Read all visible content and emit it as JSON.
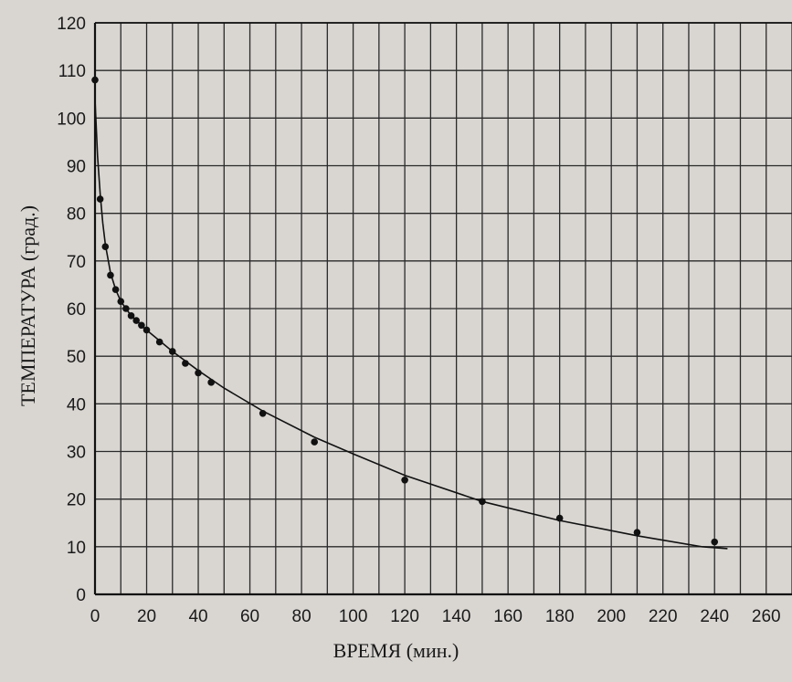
{
  "chart_data": {
    "type": "scatter",
    "xlabel": "ВРЕМЯ (мин.)",
    "ylabel": "ТЕМПЕРАТУРА (град.)",
    "xlim": [
      0,
      270
    ],
    "ylim": [
      0,
      120
    ],
    "x_ticks": [
      0,
      20,
      40,
      60,
      80,
      100,
      120,
      140,
      160,
      180,
      200,
      220,
      240,
      260
    ],
    "y_ticks": [
      0,
      10,
      20,
      30,
      40,
      50,
      60,
      70,
      80,
      90,
      100,
      110,
      120
    ],
    "x_grid_step": 10,
    "y_grid_step": 10,
    "grid": true,
    "points": [
      {
        "x": 0,
        "y": 108
      },
      {
        "x": 2,
        "y": 83
      },
      {
        "x": 4,
        "y": 73
      },
      {
        "x": 6,
        "y": 67
      },
      {
        "x": 8,
        "y": 64
      },
      {
        "x": 10,
        "y": 61.5
      },
      {
        "x": 12,
        "y": 60
      },
      {
        "x": 14,
        "y": 58.5
      },
      {
        "x": 16,
        "y": 57.5
      },
      {
        "x": 18,
        "y": 56.5
      },
      {
        "x": 20,
        "y": 55.5
      },
      {
        "x": 25,
        "y": 53
      },
      {
        "x": 30,
        "y": 51
      },
      {
        "x": 35,
        "y": 48.5
      },
      {
        "x": 40,
        "y": 46.5
      },
      {
        "x": 45,
        "y": 44.5
      },
      {
        "x": 65,
        "y": 38
      },
      {
        "x": 85,
        "y": 32
      },
      {
        "x": 120,
        "y": 24
      },
      {
        "x": 150,
        "y": 19.5
      },
      {
        "x": 180,
        "y": 16
      },
      {
        "x": 210,
        "y": 13
      },
      {
        "x": 240,
        "y": 11
      }
    ],
    "fit_curve": [
      {
        "x": 0,
        "y": 104
      },
      {
        "x": 1,
        "y": 92
      },
      {
        "x": 2,
        "y": 84
      },
      {
        "x": 3,
        "y": 78
      },
      {
        "x": 4,
        "y": 73.5
      },
      {
        "x": 6,
        "y": 67.5
      },
      {
        "x": 8,
        "y": 64
      },
      {
        "x": 10,
        "y": 61.5
      },
      {
        "x": 14,
        "y": 58.5
      },
      {
        "x": 20,
        "y": 55.5
      },
      {
        "x": 30,
        "y": 51
      },
      {
        "x": 40,
        "y": 47
      },
      {
        "x": 50,
        "y": 43.3
      },
      {
        "x": 65,
        "y": 38.5
      },
      {
        "x": 85,
        "y": 33
      },
      {
        "x": 100,
        "y": 29.5
      },
      {
        "x": 120,
        "y": 25
      },
      {
        "x": 150,
        "y": 19.5
      },
      {
        "x": 180,
        "y": 15.5
      },
      {
        "x": 210,
        "y": 12.3
      },
      {
        "x": 235,
        "y": 10
      },
      {
        "x": 245,
        "y": 9.6
      }
    ]
  }
}
